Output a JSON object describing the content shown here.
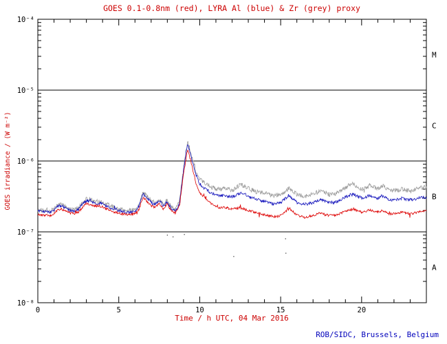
{
  "colors": {
    "frame": "#000000",
    "title_text": "#cc0000",
    "axis_label_text": "#cc0000",
    "tick_text": "#000000",
    "credit_text": "#0000bb",
    "goes_red": "#dd0000",
    "lyra_al_blue": "#1111bb",
    "lyra_zr_grey": "#9a9a9a"
  },
  "chart_data": {
    "type": "line",
    "title": "GOES 0.1-0.8nm (red), LYRA Al (blue) & Zr (grey) proxy",
    "xlabel": "Time / h UTC, 04 Mar 2016",
    "ylabel": "GOES irradiance / (W m⁻²)",
    "credit": "ROB/SIDC, Brussels, Belgium",
    "x_range": [
      0,
      24
    ],
    "x_major_ticks": [
      0,
      5,
      10,
      15,
      20
    ],
    "x_minor_step": 1,
    "y_scale": "log",
    "y_range": [
      1e-08,
      0.0001
    ],
    "y_ticks": [
      {
        "value": 1e-08,
        "label": "10⁻⁸"
      },
      {
        "value": 1e-07,
        "label": "10⁻⁷"
      },
      {
        "value": 1e-06,
        "label": "10⁻⁶"
      },
      {
        "value": 1e-05,
        "label": "10⁻⁵"
      },
      {
        "value": 0.0001,
        "label": "10⁻⁴"
      }
    ],
    "hlines": [
      1e-07,
      1e-06,
      1e-05
    ],
    "flare_classes": [
      {
        "label": "M",
        "value": 3.16e-05
      },
      {
        "label": "C",
        "value": 3.16e-06
      },
      {
        "label": "B",
        "value": 3.16e-07
      },
      {
        "label": "A",
        "value": 3.16e-08
      }
    ],
    "grid": false,
    "legend": "in title (colors named)",
    "x_start": 0,
    "x_step": 0.25,
    "values_scale": 1e-07,
    "series": [
      {
        "name": "LYRA Zr (grey) proxy",
        "color": "#9a9a9a",
        "values": [
          2.1,
          2.0,
          2.05,
          2.0,
          2.1,
          2.4,
          2.5,
          2.25,
          2.1,
          2.05,
          2.15,
          2.6,
          2.9,
          2.85,
          2.65,
          2.7,
          2.6,
          2.45,
          2.3,
          2.2,
          2.1,
          2.05,
          2.0,
          2.0,
          2.05,
          2.4,
          3.6,
          3.2,
          2.75,
          2.55,
          2.95,
          2.4,
          2.85,
          2.2,
          2.1,
          2.6,
          8.0,
          19.0,
          12.0,
          7.5,
          5.6,
          5.0,
          4.6,
          4.3,
          4.1,
          4.0,
          4.1,
          4.0,
          3.9,
          4.2,
          4.6,
          4.4,
          4.1,
          3.9,
          3.7,
          3.6,
          3.5,
          3.4,
          3.3,
          3.3,
          3.4,
          3.7,
          4.1,
          3.7,
          3.4,
          3.3,
          3.2,
          3.3,
          3.4,
          3.6,
          3.7,
          3.5,
          3.4,
          3.4,
          3.6,
          3.9,
          4.2,
          4.6,
          4.8,
          4.4,
          4.0,
          4.2,
          4.6,
          4.3,
          4.1,
          4.5,
          4.2,
          3.9,
          3.8,
          3.9,
          4.0,
          3.9,
          3.8,
          3.9,
          4.1,
          4.2,
          4.3
        ]
      },
      {
        "name": "LYRA Al (blue) proxy",
        "color": "#1111bb",
        "values": [
          2.0,
          1.9,
          1.95,
          1.9,
          2.0,
          2.3,
          2.35,
          2.15,
          2.0,
          1.95,
          2.05,
          2.45,
          2.75,
          2.7,
          2.5,
          2.55,
          2.45,
          2.3,
          2.2,
          2.1,
          2.0,
          1.95,
          1.9,
          1.9,
          1.95,
          2.3,
          3.4,
          3.0,
          2.6,
          2.4,
          2.8,
          2.3,
          2.7,
          2.1,
          2.0,
          2.5,
          7.5,
          18.0,
          11.0,
          6.5,
          4.8,
          4.2,
          3.8,
          3.5,
          3.3,
          3.2,
          3.3,
          3.2,
          3.1,
          3.3,
          3.5,
          3.4,
          3.2,
          3.0,
          2.9,
          2.8,
          2.7,
          2.6,
          2.5,
          2.5,
          2.6,
          2.9,
          3.3,
          2.9,
          2.6,
          2.5,
          2.45,
          2.5,
          2.6,
          2.75,
          2.8,
          2.7,
          2.6,
          2.6,
          2.7,
          2.9,
          3.1,
          3.3,
          3.4,
          3.2,
          3.0,
          3.1,
          3.3,
          3.1,
          3.0,
          3.2,
          3.0,
          2.85,
          2.8,
          2.9,
          3.0,
          2.9,
          2.85,
          2.9,
          3.0,
          3.05,
          3.1
        ]
      },
      {
        "name": "GOES 0.1-0.8nm (red)",
        "color": "#dd0000",
        "values": [
          1.8,
          1.7,
          1.75,
          1.7,
          1.8,
          2.05,
          2.1,
          1.95,
          1.85,
          1.8,
          1.9,
          2.2,
          2.5,
          2.45,
          2.3,
          2.35,
          2.25,
          2.1,
          2.0,
          1.9,
          1.85,
          1.8,
          1.75,
          1.75,
          1.8,
          2.1,
          3.1,
          2.7,
          2.35,
          2.2,
          2.55,
          2.1,
          2.5,
          1.95,
          1.85,
          2.3,
          6.5,
          14.5,
          9.0,
          5.0,
          3.6,
          3.1,
          2.7,
          2.45,
          2.3,
          2.2,
          2.25,
          2.15,
          2.1,
          2.15,
          2.2,
          2.1,
          2.0,
          1.95,
          1.85,
          1.8,
          1.75,
          1.7,
          1.65,
          1.65,
          1.7,
          1.85,
          2.2,
          1.95,
          1.75,
          1.65,
          1.6,
          1.65,
          1.7,
          1.8,
          1.85,
          1.75,
          1.7,
          1.7,
          1.75,
          1.85,
          1.95,
          2.05,
          2.1,
          2.0,
          1.9,
          1.95,
          2.05,
          1.95,
          1.9,
          2.0,
          1.9,
          1.8,
          1.8,
          1.85,
          1.9,
          1.85,
          1.8,
          1.85,
          1.9,
          1.95,
          2.0
        ]
      }
    ],
    "glitch_points": [
      [
        8.0,
        9e-08
      ],
      [
        8.35,
        8.5e-08
      ],
      [
        9.05,
        9.2e-08
      ],
      [
        12.1,
        4.5e-08
      ],
      [
        15.3,
        8e-08
      ],
      [
        15.32,
        5e-08
      ]
    ]
  }
}
